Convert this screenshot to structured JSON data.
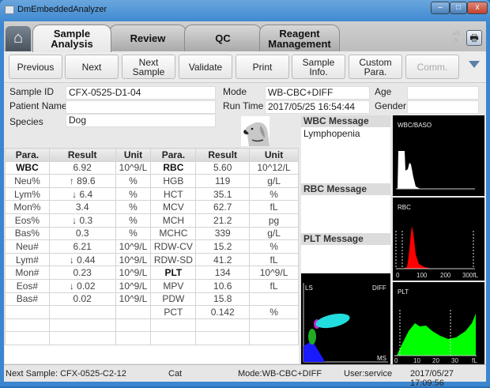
{
  "window": {
    "title": "DmEmbeddedAnalyzer",
    "minimize": "–",
    "maximize": "□",
    "close": "x"
  },
  "tabs": [
    {
      "label1": "Sample",
      "label2": "Analysis"
    },
    {
      "label1": "Review",
      "label2": ""
    },
    {
      "label1": "QC",
      "label2": ""
    },
    {
      "label1": "Reagent",
      "label2": "Management"
    }
  ],
  "toolbar": [
    {
      "l1": "Previous",
      "l2": ""
    },
    {
      "l1": "Next",
      "l2": ""
    },
    {
      "l1": "Next",
      "l2": "Sample"
    },
    {
      "l1": "Validate",
      "l2": ""
    },
    {
      "l1": "Print",
      "l2": ""
    },
    {
      "l1": "Sample Info.",
      "l2": ""
    },
    {
      "l1": "Custom",
      "l2": "Para."
    },
    {
      "l1": "Comm.",
      "l2": ""
    }
  ],
  "lis_label": "LIS",
  "info": {
    "sample_id_label": "Sample ID",
    "sample_id": "CFX-0525-D1-04",
    "patient_name_label": "Patient Name",
    "patient_name": "",
    "species_label": "Species",
    "species": "Dog",
    "mode_label": "Mode",
    "mode": "WB-CBC+DIFF",
    "run_time_label": "Run Time",
    "run_time": "2017/05/25 16:54:44",
    "age_label": "Age",
    "age": "",
    "gender_label": "Gender",
    "gender": ""
  },
  "table": {
    "headers": [
      "Para.",
      "Result",
      "Unit",
      "Para.",
      "Result",
      "Unit"
    ],
    "rows": [
      [
        "WBC",
        "6.92",
        "10^9/L",
        "RBC",
        "5.60",
        "10^12/L"
      ],
      [
        "Neu%",
        "↑ 89.6",
        "%",
        "HGB",
        "119",
        "g/L"
      ],
      [
        "Lym%",
        "↓ 6.4",
        "%",
        "HCT",
        "35.1",
        "%"
      ],
      [
        "Mon%",
        "3.4",
        "%",
        "MCV",
        "62.7",
        "fL"
      ],
      [
        "Eos%",
        "↓ 0.3",
        "%",
        "MCH",
        "21.2",
        "pg"
      ],
      [
        "Bas%",
        "0.3",
        "%",
        "MCHC",
        "339",
        "g/L"
      ],
      [
        "Neu#",
        "6.21",
        "10^9/L",
        "RDW-CV",
        "15.2",
        "%"
      ],
      [
        "Lym#",
        "↓ 0.44",
        "10^9/L",
        "RDW-SD",
        "41.2",
        "fL"
      ],
      [
        "Mon#",
        "0.23",
        "10^9/L",
        "PLT",
        "134",
        "10^9/L"
      ],
      [
        "Eos#",
        "↓ 0.02",
        "10^9/L",
        "MPV",
        "10.6",
        "fL"
      ],
      [
        "Bas#",
        "0.02",
        "10^9/L",
        "PDW",
        "15.8",
        ""
      ],
      [
        "",
        "",
        "",
        "PCT",
        "0.142",
        "%"
      ],
      [
        "",
        "",
        "",
        "",
        "",
        ""
      ],
      [
        "",
        "",
        "",
        "",
        "",
        ""
      ]
    ]
  },
  "messages": {
    "wbc_title": "WBC Message",
    "wbc_text": "Lymphopenia",
    "rbc_title": "RBC Message",
    "rbc_text": "",
    "plt_title": "PLT Message",
    "plt_text": ""
  },
  "plots": {
    "wbc": "WBC/BASO",
    "rbc": "RBC",
    "plt": "PLT",
    "scatter_y": "LS",
    "scatter_tr": "DIFF",
    "scatter_x": "MS",
    "rbc_ticks": [
      "0",
      "100",
      "200",
      "300fL"
    ],
    "plt_ticks": [
      "0",
      "10",
      "20",
      "30",
      "fL"
    ],
    "colors": {
      "wbc": "#ffffff",
      "rbc": "#ff0000",
      "plt": "#00ff00"
    }
  },
  "status": {
    "next_sample": "Next Sample: CFX-0525-C2-12",
    "species": "Cat",
    "mode": "Mode:WB-CBC+DIFF",
    "user": "User:service",
    "datetime": "2017/05/27 17:09:56"
  }
}
